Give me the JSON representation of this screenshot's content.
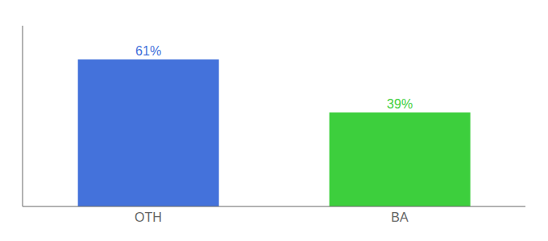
{
  "chart_data": {
    "type": "bar",
    "categories": [
      "OTH",
      "BA"
    ],
    "values": [
      61,
      39
    ],
    "value_labels": [
      "61%",
      "39%"
    ],
    "data_labels": true,
    "colors": [
      "#4472db",
      "#3dcf3d"
    ],
    "ylim": [
      0,
      75
    ],
    "grid": false,
    "tick_labels": "x"
  }
}
